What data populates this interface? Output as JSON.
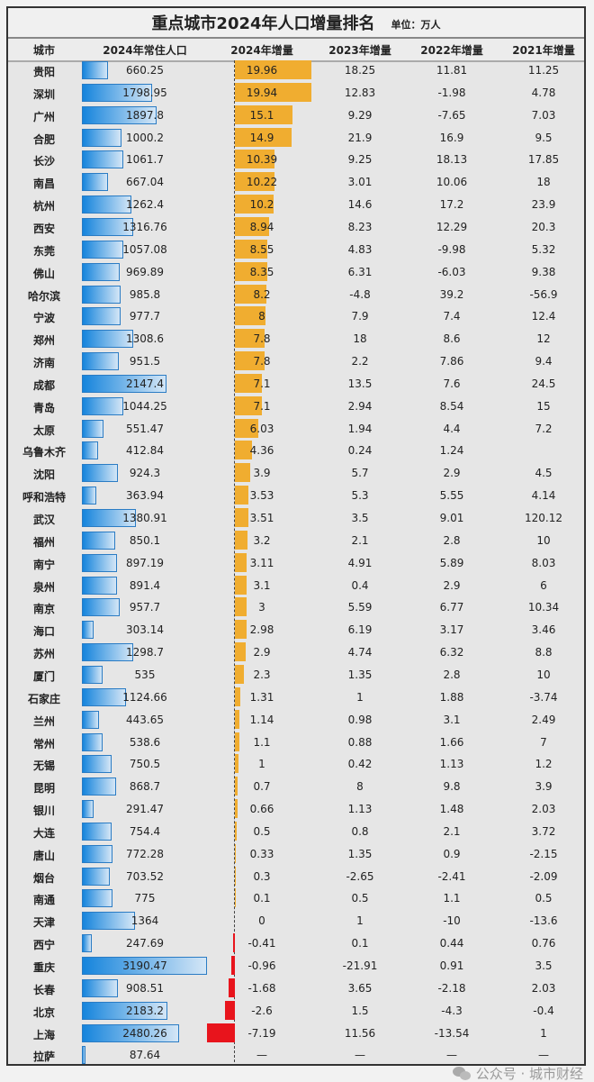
{
  "title": "重点城市2024年人口增量排名",
  "unit": "单位：万人",
  "watermark": "公众号 · 城市财经",
  "colors": {
    "population_bar": "#1584dc",
    "increase_bar": "#f0ad30",
    "decrease_bar": "#e8141c"
  },
  "chart_data": {
    "type": "table",
    "columns": [
      "城市",
      "2024年常住人口",
      "2024年增量",
      "2023年增量",
      "2022年增量",
      "2021年增量"
    ],
    "rows": [
      [
        "贵阳",
        "660.25",
        "19.96",
        "18.25",
        "11.81",
        "11.25"
      ],
      [
        "深圳",
        "1798.95",
        "19.94",
        "12.83",
        "-1.98",
        "4.78"
      ],
      [
        "广州",
        "1897.8",
        "15.1",
        "9.29",
        "-7.65",
        "7.03"
      ],
      [
        "合肥",
        "1000.2",
        "14.9",
        "21.9",
        "16.9",
        "9.5"
      ],
      [
        "长沙",
        "1061.7",
        "10.39",
        "9.25",
        "18.13",
        "17.85"
      ],
      [
        "南昌",
        "667.04",
        "10.22",
        "3.01",
        "10.06",
        "18"
      ],
      [
        "杭州",
        "1262.4",
        "10.2",
        "14.6",
        "17.2",
        "23.9"
      ],
      [
        "西安",
        "1316.76",
        "8.94",
        "8.23",
        "12.29",
        "20.3"
      ],
      [
        "东莞",
        "1057.08",
        "8.55",
        "4.83",
        "-9.98",
        "5.32"
      ],
      [
        "佛山",
        "969.89",
        "8.35",
        "6.31",
        "-6.03",
        "9.38"
      ],
      [
        "哈尔滨",
        "985.8",
        "8.2",
        "-4.8",
        "39.2",
        "-56.9"
      ],
      [
        "宁波",
        "977.7",
        "8",
        "7.9",
        "7.4",
        "12.4"
      ],
      [
        "郑州",
        "1308.6",
        "7.8",
        "18",
        "8.6",
        "12"
      ],
      [
        "济南",
        "951.5",
        "7.8",
        "2.2",
        "7.86",
        "9.4"
      ],
      [
        "成都",
        "2147.4",
        "7.1",
        "13.5",
        "7.6",
        "24.5"
      ],
      [
        "青岛",
        "1044.25",
        "7.1",
        "2.94",
        "8.54",
        "15"
      ],
      [
        "太原",
        "551.47",
        "6.03",
        "1.94",
        "4.4",
        "7.2"
      ],
      [
        "乌鲁木齐",
        "412.84",
        "4.36",
        "0.24",
        "1.24",
        ""
      ],
      [
        "沈阳",
        "924.3",
        "3.9",
        "5.7",
        "2.9",
        "4.5"
      ],
      [
        "呼和浩特",
        "363.94",
        "3.53",
        "5.3",
        "5.55",
        "4.14"
      ],
      [
        "武汉",
        "1380.91",
        "3.51",
        "3.5",
        "9.01",
        "120.12"
      ],
      [
        "福州",
        "850.1",
        "3.2",
        "2.1",
        "2.8",
        "10"
      ],
      [
        "南宁",
        "897.19",
        "3.11",
        "4.91",
        "5.89",
        "8.03"
      ],
      [
        "泉州",
        "891.4",
        "3.1",
        "0.4",
        "2.9",
        "6"
      ],
      [
        "南京",
        "957.7",
        "3",
        "5.59",
        "6.77",
        "10.34"
      ],
      [
        "海口",
        "303.14",
        "2.98",
        "6.19",
        "3.17",
        "3.46"
      ],
      [
        "苏州",
        "1298.7",
        "2.9",
        "4.74",
        "6.32",
        "8.8"
      ],
      [
        "厦门",
        "535",
        "2.3",
        "1.35",
        "2.8",
        "10"
      ],
      [
        "石家庄",
        "1124.66",
        "1.31",
        "1",
        "1.88",
        "-3.74"
      ],
      [
        "兰州",
        "443.65",
        "1.14",
        "0.98",
        "3.1",
        "2.49"
      ],
      [
        "常州",
        "538.6",
        "1.1",
        "0.88",
        "1.66",
        "7"
      ],
      [
        "无锡",
        "750.5",
        "1",
        "0.42",
        "1.13",
        "1.2"
      ],
      [
        "昆明",
        "868.7",
        "0.7",
        "8",
        "9.8",
        "3.9"
      ],
      [
        "银川",
        "291.47",
        "0.66",
        "1.13",
        "1.48",
        "2.03"
      ],
      [
        "大连",
        "754.4",
        "0.5",
        "0.8",
        "2.1",
        "3.72"
      ],
      [
        "唐山",
        "772.28",
        "0.33",
        "1.35",
        "0.9",
        "-2.15"
      ],
      [
        "烟台",
        "703.52",
        "0.3",
        "-2.65",
        "-2.41",
        "-2.09"
      ],
      [
        "南通",
        "775",
        "0.1",
        "0.5",
        "1.1",
        "0.5"
      ],
      [
        "天津",
        "1364",
        "0",
        "1",
        "-10",
        "-13.6"
      ],
      [
        "西宁",
        "247.69",
        "-0.41",
        "0.1",
        "0.44",
        "0.76"
      ],
      [
        "重庆",
        "3190.47",
        "-0.96",
        "-21.91",
        "0.91",
        "3.5"
      ],
      [
        "长春",
        "908.51",
        "-1.68",
        "3.65",
        "-2.18",
        "2.03"
      ],
      [
        "北京",
        "2183.2",
        "-2.6",
        "1.5",
        "-4.3",
        "-0.4"
      ],
      [
        "上海",
        "2480.26",
        "-7.19",
        "11.56",
        "-13.54",
        "1"
      ],
      [
        "拉萨",
        "87.64",
        "—",
        "—",
        "—",
        "—"
      ]
    ]
  }
}
